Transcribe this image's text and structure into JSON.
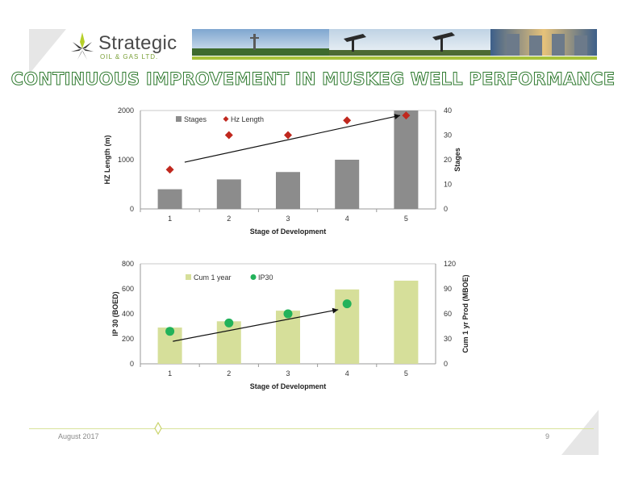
{
  "header": {
    "logo_name": "Strategic",
    "logo_sub": "OIL & GAS LTD.",
    "title": "CONTINUOUS IMPROVEMENT IN MUSKEG WELL PERFORMANCE"
  },
  "footer": {
    "date": "August 2017",
    "page": "9"
  },
  "colors": {
    "stages_bar": "#8c8c8c",
    "hz_marker": "#c0281e",
    "cum_bar": "#d6df9a",
    "ip30_marker": "#22b25a",
    "title_outline": "#2f7a2f",
    "accent_line": "#a8c23a"
  },
  "chart_data": [
    {
      "type": "bar",
      "categories": [
        "1",
        "2",
        "3",
        "4",
        "5"
      ],
      "xlabel": "Stage of Development",
      "ylabel": "HZ Length (m)",
      "ylabel_right": "Stages",
      "ylim": [
        0,
        2000
      ],
      "ylim_right": [
        0,
        40
      ],
      "yticks": [
        "0",
        "1000",
        "2000"
      ],
      "yticks_right": [
        "0",
        "10",
        "20",
        "30",
        "40"
      ],
      "legend": "top-left",
      "series": [
        {
          "name": "Stages",
          "kind": "bar",
          "axis": "left",
          "values": [
            400,
            600,
            750,
            1000,
            2000
          ]
        },
        {
          "name": "Hz Length",
          "kind": "scatter",
          "axis": "right",
          "marker": "diamond",
          "values": [
            16,
            30,
            30,
            36,
            38
          ]
        }
      ],
      "trend_arrow": {
        "from": [
          1.25,
          19
        ],
        "to": [
          4.9,
          38
        ]
      }
    },
    {
      "type": "bar",
      "categories": [
        "1",
        "2",
        "3",
        "4",
        "5"
      ],
      "xlabel": "Stage of Development",
      "ylabel": "IP 30 (BOED)",
      "ylabel_right": "Cum 1 yr Prod (MBOE)",
      "ylim": [
        0,
        800
      ],
      "ylim_right": [
        0,
        120
      ],
      "yticks": [
        "0",
        "200",
        "400",
        "600",
        "800"
      ],
      "yticks_right": [
        "0",
        "30",
        "60",
        "90",
        "120"
      ],
      "legend": "top-left",
      "series": [
        {
          "name": "Cum 1 year",
          "kind": "bar",
          "axis": "left",
          "values": [
            290,
            340,
            425,
            595,
            665
          ]
        },
        {
          "name": "IP30",
          "kind": "scatter",
          "axis": "right",
          "marker": "circle",
          "values": [
            39,
            49,
            60,
            72,
            null
          ]
        }
      ],
      "trend_arrow": {
        "from": [
          1.05,
          27
        ],
        "to": [
          3.85,
          65
        ]
      }
    }
  ]
}
